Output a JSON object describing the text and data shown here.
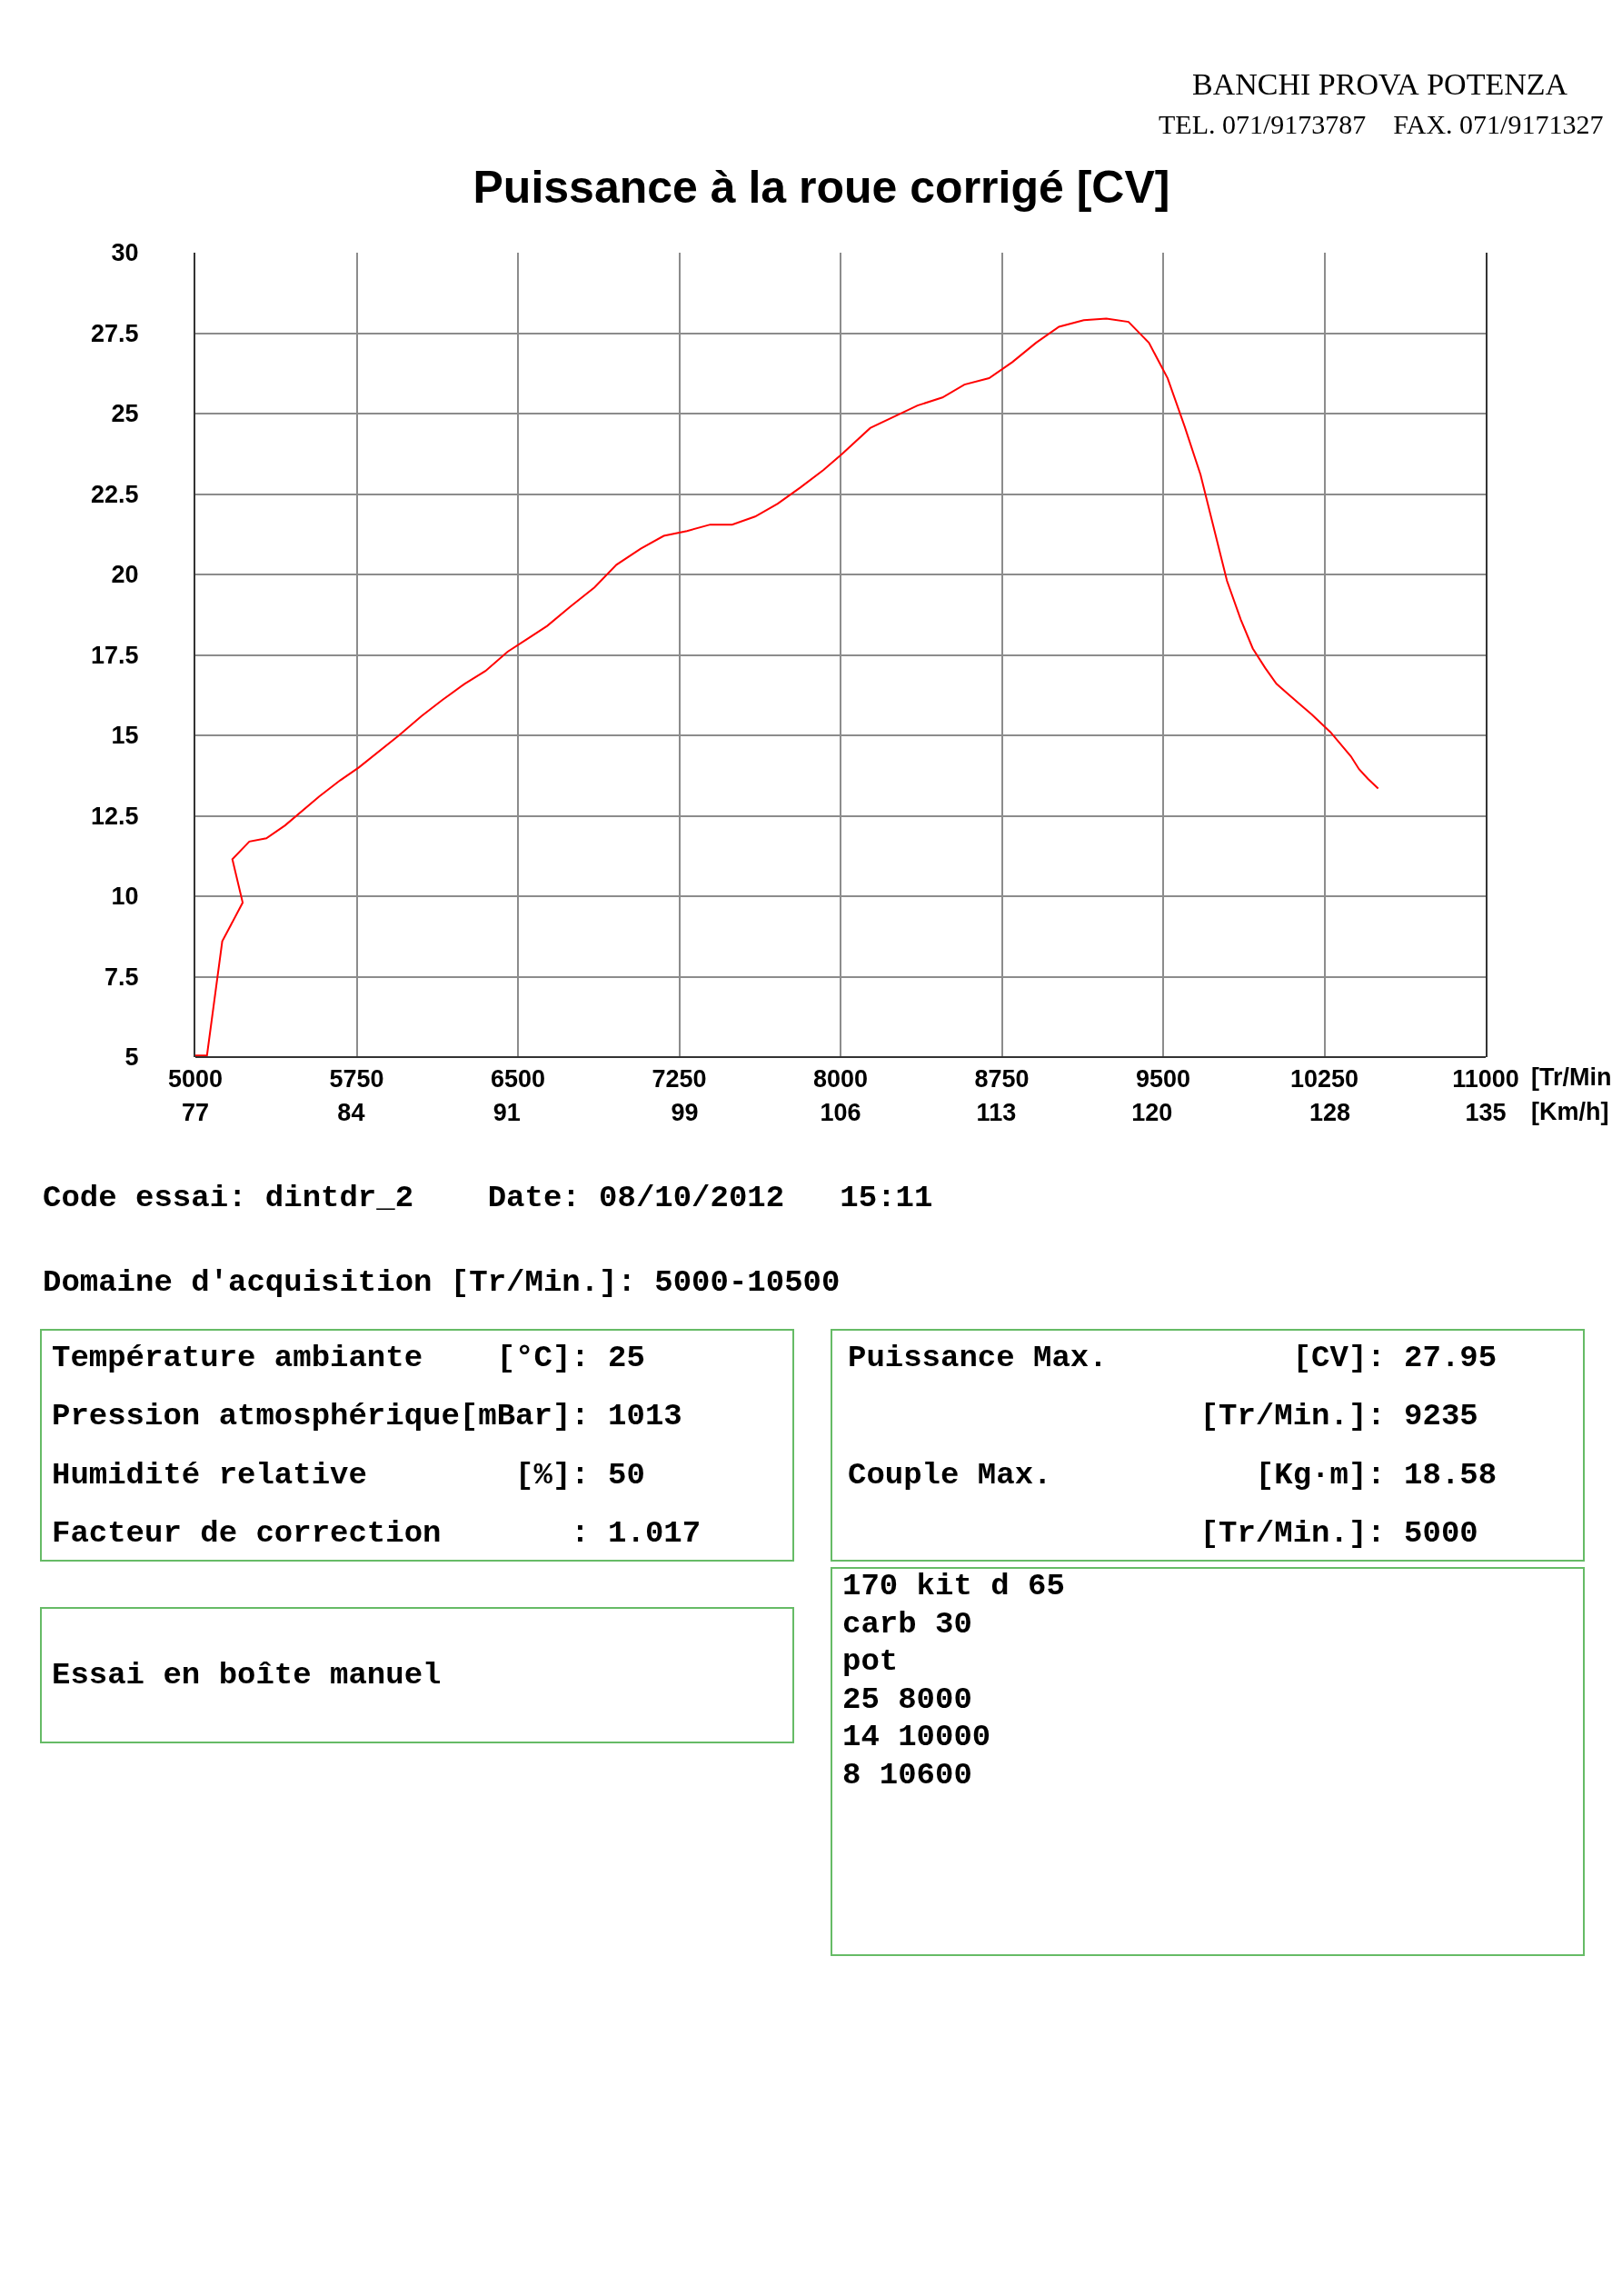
{
  "chart_data": {
    "type": "line",
    "title": "Puissance à la roue corrigé [CV]",
    "x": [
      5000,
      5054,
      5125,
      5220,
      5172,
      5251,
      5330,
      5417,
      5576,
      5673,
      5760,
      5947,
      6052,
      6149,
      6252,
      6349,
      6452,
      6544,
      6636,
      6743,
      6856,
      6958,
      7071,
      7178,
      7286,
      7394,
      7496,
      7603,
      7708,
      7813,
      7921,
      8008,
      8138,
      8358,
      8474,
      8576,
      8691,
      8799,
      8909,
      9016,
      9131,
      9236,
      9339,
      9434,
      9521,
      9600,
      9674,
      9797,
      9861,
      9917,
      9974,
      10027,
      10138,
      10191,
      10278,
      10373,
      10411,
      10452,
      10500
    ],
    "values": [
      5.05,
      5.05,
      8.6,
      9.8,
      11.15,
      11.7,
      11.8,
      12.2,
      13.1,
      13.6,
      14.0,
      15.0,
      15.6,
      16.1,
      16.6,
      17.0,
      17.6,
      18.0,
      18.4,
      19.0,
      19.6,
      20.3,
      20.8,
      21.2,
      21.35,
      21.55,
      21.55,
      21.8,
      22.2,
      22.7,
      23.25,
      23.75,
      24.55,
      25.25,
      25.5,
      25.9,
      26.1,
      26.6,
      27.2,
      27.7,
      27.9,
      27.95,
      27.85,
      27.2,
      26.1,
      24.6,
      23.1,
      19.8,
      18.6,
      17.7,
      17.1,
      16.6,
      15.95,
      15.65,
      15.1,
      14.35,
      13.95,
      13.65,
      13.35
    ],
    "color": "#ff0000",
    "marker": "none",
    "grid": true,
    "xlim": [
      5000,
      11000
    ],
    "ylim": [
      5,
      30
    ],
    "xticks": [
      5000,
      5750,
      6500,
      7250,
      8000,
      8750,
      9500,
      10250,
      11000
    ],
    "xlabel": "[Tr/Min",
    "x2label": "[Km/h]",
    "x2lim": [
      77,
      135
    ],
    "x2ticks": [
      77,
      84,
      91,
      99,
      106,
      113,
      120,
      128,
      135
    ],
    "yticks": [
      5,
      7.5,
      10,
      12.5,
      15,
      17.5,
      20,
      22.5,
      25,
      27.5,
      30
    ],
    "annotations": [
      "BANCHI PROVA POTENZA",
      "TEL. 071/9173787    FAX. 071/9171327",
      "Code essai: dintdr_2    Date: 08/10/2012   15:11",
      "Domaine d'acquisition [Tr/Min.]: 5000-10500",
      "Température ambiante    [°C]: 25",
      "Pression atmosphérique[mBar]: 1013",
      "Humidité relative        [%]: 50",
      "Facteur de correction       : 1.017",
      "Puissance Max.          [CV]: 27.95",
      "                   [Tr/Min.]: 9235",
      "Couple Max.           [Kg·m]: 18.58",
      "                   [Tr/Min.]: 5000",
      "Essai en boîte manuel",
      "170 kit d 65",
      "carb 30",
      "pot",
      "25 8000",
      "14 10000",
      "8 10600"
    ]
  }
}
